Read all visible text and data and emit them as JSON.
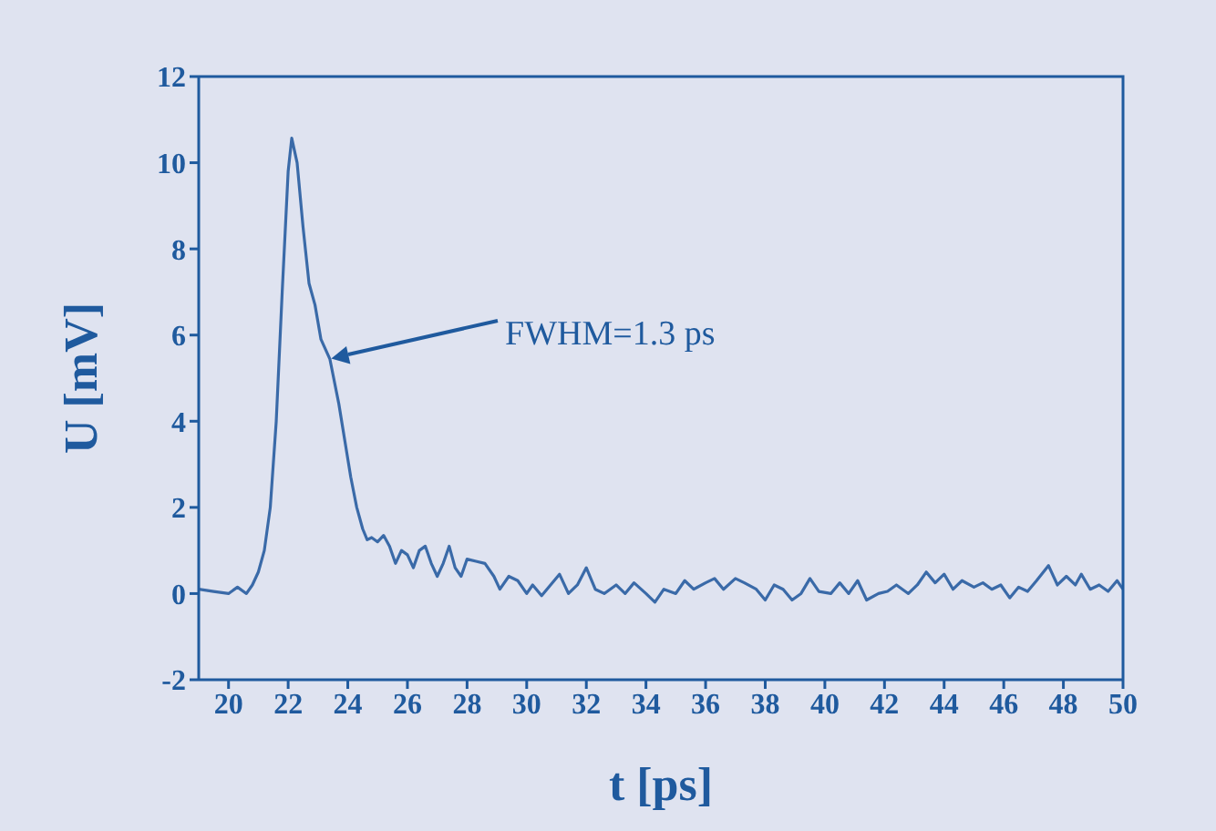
{
  "chart_data": {
    "type": "line",
    "xlabel": "t [ps]",
    "ylabel": "U [mV]",
    "xlim": [
      19,
      50
    ],
    "ylim": [
      -2,
      12
    ],
    "xticks": [
      20,
      22,
      24,
      26,
      28,
      30,
      32,
      34,
      36,
      38,
      40,
      42,
      44,
      46,
      48,
      50
    ],
    "yticks": [
      -2,
      0,
      2,
      4,
      6,
      8,
      10,
      12
    ],
    "grid": false,
    "legend": false,
    "marker": "none",
    "line_style": "solid",
    "annotations": [
      "FWHM=1.3 ps"
    ],
    "series": [
      {
        "color": "#3a6aa8",
        "x": [
          19.0,
          19.5,
          20.0,
          20.3,
          20.6,
          20.8,
          21.0,
          21.2,
          21.4,
          21.6,
          21.8,
          22.0,
          22.12,
          22.3,
          22.5,
          22.7,
          22.9,
          23.1,
          23.4,
          23.7,
          24.1,
          24.3,
          24.5,
          24.65,
          24.8,
          25.0,
          25.2,
          25.4,
          25.6,
          25.8,
          26.0,
          26.2,
          26.4,
          26.6,
          26.8,
          27.0,
          27.2,
          27.4,
          27.6,
          27.8,
          28.0,
          28.3,
          28.6,
          28.9,
          29.1,
          29.4,
          29.7,
          30.0,
          30.2,
          30.5,
          30.8,
          31.1,
          31.4,
          31.7,
          32.0,
          32.3,
          32.6,
          33.0,
          33.3,
          33.6,
          34.0,
          34.3,
          34.6,
          35.0,
          35.3,
          35.6,
          36.0,
          36.3,
          36.6,
          37.0,
          37.3,
          37.7,
          38.0,
          38.3,
          38.6,
          38.9,
          39.2,
          39.5,
          39.8,
          40.2,
          40.5,
          40.8,
          41.1,
          41.4,
          41.8,
          42.1,
          42.4,
          42.8,
          43.1,
          43.4,
          43.7,
          44.0,
          44.3,
          44.6,
          45.0,
          45.3,
          45.6,
          45.9,
          46.2,
          46.5,
          46.8,
          47.1,
          47.5,
          47.8,
          48.1,
          48.4,
          48.6,
          48.9,
          49.2,
          49.5,
          49.8,
          50.0
        ],
        "values": [
          0.1,
          0.05,
          0.0,
          0.15,
          0.0,
          0.2,
          0.5,
          1.0,
          2.0,
          4.0,
          7.0,
          9.8,
          10.57,
          10.0,
          8.5,
          7.2,
          6.7,
          5.9,
          5.44,
          4.4,
          2.7,
          2.0,
          1.5,
          1.25,
          1.3,
          1.2,
          1.35,
          1.1,
          0.7,
          1.0,
          0.9,
          0.6,
          1.0,
          1.1,
          0.7,
          0.4,
          0.7,
          1.1,
          0.6,
          0.4,
          0.8,
          0.75,
          0.7,
          0.4,
          0.1,
          0.4,
          0.3,
          0.0,
          0.2,
          -0.05,
          0.2,
          0.45,
          0.0,
          0.2,
          0.6,
          0.1,
          0.0,
          0.2,
          0.0,
          0.25,
          0.0,
          -0.2,
          0.1,
          0.0,
          0.3,
          0.1,
          0.25,
          0.35,
          0.1,
          0.35,
          0.25,
          0.1,
          -0.15,
          0.2,
          0.1,
          -0.15,
          0.0,
          0.35,
          0.05,
          0.0,
          0.25,
          0.0,
          0.3,
          -0.15,
          0.0,
          0.05,
          0.2,
          0.0,
          0.2,
          0.5,
          0.25,
          0.45,
          0.1,
          0.3,
          0.15,
          0.25,
          0.1,
          0.2,
          -0.1,
          0.15,
          0.05,
          0.3,
          0.65,
          0.2,
          0.4,
          0.2,
          0.45,
          0.1,
          0.2,
          0.05,
          0.3,
          0.1
        ]
      }
    ]
  }
}
